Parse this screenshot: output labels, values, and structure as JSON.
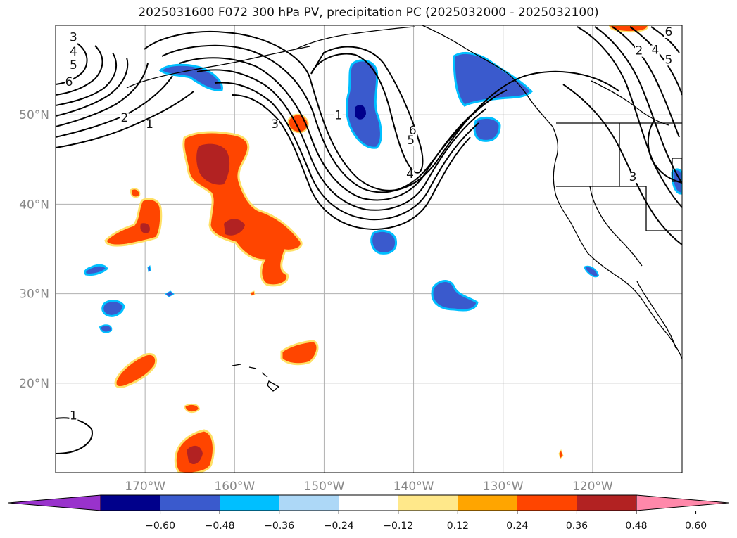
{
  "title": "2025031600 F072 300 hPa PV, precipitation PC (2025032000 - 2025032100)",
  "map": {
    "lon_range": [
      -180,
      -110
    ],
    "lat_range": [
      10,
      60
    ],
    "lon_ticks": [
      {
        "lon": -170,
        "label": "170°W"
      },
      {
        "lon": -160,
        "label": "160°W"
      },
      {
        "lon": -150,
        "label": "150°W"
      },
      {
        "lon": -140,
        "label": "140°W"
      },
      {
        "lon": -130,
        "label": "130°W"
      },
      {
        "lon": -120,
        "label": "120°W"
      }
    ],
    "lat_ticks": [
      {
        "lat": 20,
        "label": "20°N"
      },
      {
        "lat": 30,
        "label": "30°N"
      },
      {
        "lat": 40,
        "label": "40°N"
      },
      {
        "lat": 50,
        "label": "50°N"
      }
    ],
    "grid": true
  },
  "contour_labels": [
    {
      "text": "3",
      "lon": -178,
      "lat": 58.3
    },
    {
      "text": "4",
      "lon": -178,
      "lat": 56.7
    },
    {
      "text": "5",
      "lon": -178,
      "lat": 55.2
    },
    {
      "text": "6",
      "lon": -178.5,
      "lat": 53.3
    },
    {
      "text": "2",
      "lon": -172.3,
      "lat": 49.3
    },
    {
      "text": "1",
      "lon": -169.5,
      "lat": 48.6
    },
    {
      "text": "3",
      "lon": -155.5,
      "lat": 48.6
    },
    {
      "text": "1",
      "lon": -148.4,
      "lat": 49.6
    },
    {
      "text": "6",
      "lon": -140.1,
      "lat": 47.9
    },
    {
      "text": "5",
      "lon": -140.3,
      "lat": 46.8
    },
    {
      "text": "4",
      "lon": -140.4,
      "lat": 43.0
    },
    {
      "text": "2",
      "lon": -114.8,
      "lat": 56.8
    },
    {
      "text": "4",
      "lon": -113.0,
      "lat": 56.9
    },
    {
      "text": "5",
      "lon": -111.5,
      "lat": 55.8
    },
    {
      "text": "6",
      "lon": -111.5,
      "lat": 58.9
    },
    {
      "text": "3",
      "lon": -115.5,
      "lat": 42.7
    },
    {
      "text": "1",
      "lon": -178,
      "lat": 16.0
    }
  ],
  "colorbar": {
    "colors": [
      "#9932cc",
      "#00008b",
      "#3a5acd",
      "#00bfff",
      "#add8f7",
      "#ffffff",
      "#ffe88a",
      "#ffa500",
      "#ff4500",
      "#b22222",
      "#ff88aa"
    ],
    "ticks": [
      "−0.60",
      "−0.48",
      "−0.36",
      "−0.24",
      "−0.12",
      "0.12",
      "0.24",
      "0.36",
      "0.48",
      "0.60"
    ]
  }
}
